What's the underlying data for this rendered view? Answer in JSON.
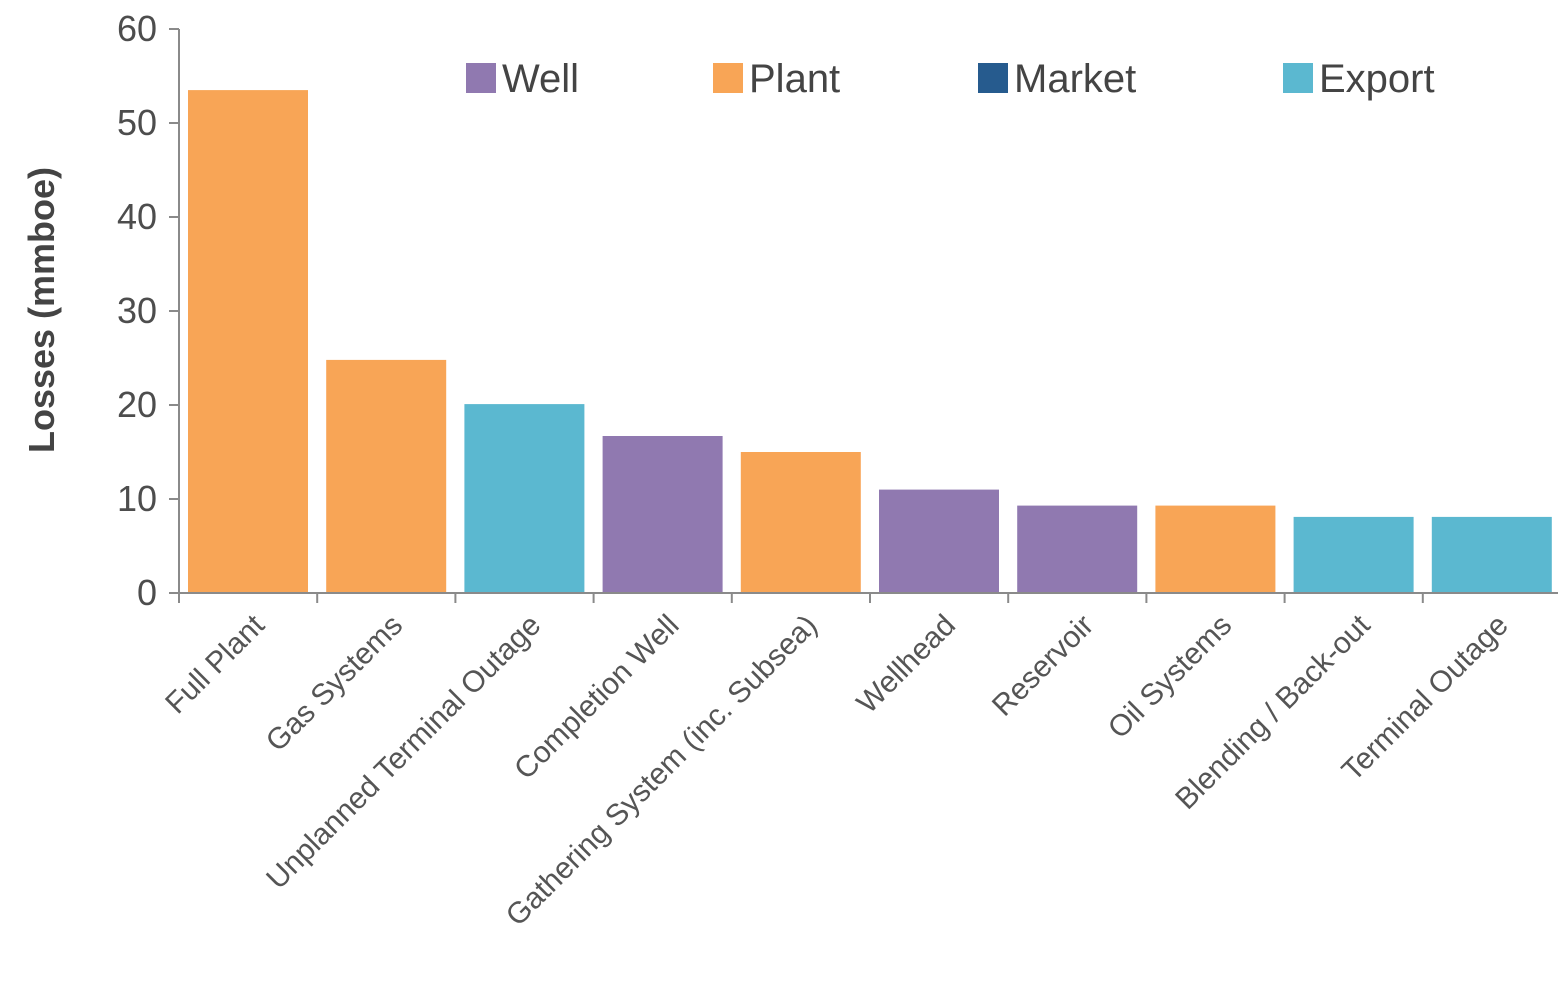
{
  "chart_data": {
    "type": "bar",
    "title": "",
    "xlabel": "",
    "ylabel": "Losses (mmboe)",
    "ylim": [
      0,
      60
    ],
    "yticks": [
      0,
      10,
      20,
      30,
      40,
      50,
      60
    ],
    "grid": false,
    "legend_position": "top-right",
    "legend": [
      {
        "name": "Well",
        "color": "#9079b0"
      },
      {
        "name": "Plant",
        "color": "#f8a556"
      },
      {
        "name": "Market",
        "color": "#265b8e"
      },
      {
        "name": "Export",
        "color": "#5bb8d0"
      }
    ],
    "categories": [
      "Full Plant",
      "Gas Systems",
      "Unplanned Terminal Outage",
      "Completion Well",
      "Gathering System (inc. Subsea)",
      "Wellhead",
      "Reservoir",
      "Oil Systems",
      "Blending / Back-out",
      "Terminal Outage"
    ],
    "values": [
      53.5,
      24.8,
      20.1,
      16.7,
      15.0,
      11.0,
      9.3,
      9.3,
      8.1,
      8.1
    ],
    "bar_groups": [
      "Plant",
      "Plant",
      "Export",
      "Well",
      "Plant",
      "Well",
      "Well",
      "Plant",
      "Export",
      "Export"
    ]
  }
}
